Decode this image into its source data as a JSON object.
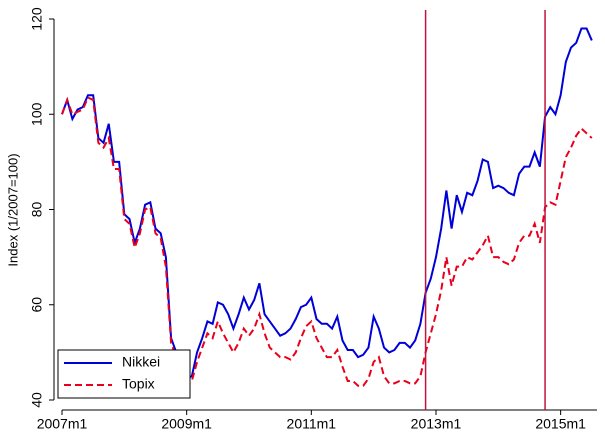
{
  "chart_data": {
    "type": "line",
    "ylabel": "Index (1/2007=100)",
    "x": [
      564,
      565,
      566,
      567,
      568,
      569,
      570,
      571,
      572,
      573,
      574,
      575,
      576,
      577,
      578,
      579,
      580,
      581,
      582,
      583,
      584,
      585,
      586,
      587,
      588,
      589,
      590,
      591,
      592,
      593,
      594,
      595,
      596,
      597,
      598,
      599,
      600,
      601,
      602,
      603,
      604,
      605,
      606,
      607,
      608,
      609,
      610,
      611,
      612,
      613,
      614,
      615,
      616,
      617,
      618,
      619,
      620,
      621,
      622,
      623,
      624,
      625,
      626,
      627,
      628,
      629,
      630,
      631,
      632,
      633,
      634,
      635,
      636,
      637,
      638,
      639,
      640,
      641,
      642,
      643,
      644,
      645,
      646,
      647,
      648,
      649,
      650,
      651,
      652,
      653,
      654,
      655,
      656,
      657,
      658,
      659,
      660,
      661,
      662,
      663,
      664,
      665,
      666
    ],
    "series": [
      {
        "name": "Nikkei",
        "color": "#0000d8",
        "dash": false,
        "values": [
          100,
          103,
          99,
          101,
          101.5,
          104,
          104,
          95,
          94,
          98,
          90,
          90,
          79,
          78,
          73,
          76,
          81,
          81.5,
          76,
          75,
          70,
          53,
          50,
          46,
          44.5,
          45,
          50,
          53,
          56.5,
          56,
          60.5,
          60,
          58,
          55,
          58,
          61.5,
          59,
          61,
          64.5,
          58,
          56.5,
          55,
          53.5,
          54,
          55,
          57,
          59.5,
          60,
          61.5,
          57,
          56,
          56,
          55,
          57.5,
          52.5,
          50.5,
          50.5,
          49,
          49.5,
          51,
          57.5,
          55,
          51,
          50,
          50.5,
          52,
          52,
          51,
          52.5,
          56,
          62.5,
          65.5,
          70,
          76,
          84,
          76,
          83,
          79.5,
          83.5,
          83,
          86,
          90.5,
          90,
          84.5,
          85,
          84.5,
          83.5,
          83,
          87.5,
          89,
          89,
          92,
          89,
          99.5,
          101.5,
          100,
          104,
          111,
          114,
          115,
          118,
          118,
          115.5
        ]
      },
      {
        "name": "Topix",
        "color": "#e8001c",
        "dash": true,
        "values": [
          100,
          103,
          100,
          100.5,
          101,
          103.5,
          103,
          94,
          93,
          95,
          88.5,
          88.5,
          78,
          77,
          72,
          75,
          80,
          80.5,
          75,
          74,
          68,
          52,
          49,
          45,
          44,
          44,
          48,
          51,
          54,
          53,
          56.5,
          54,
          52,
          50,
          52,
          55,
          53.5,
          55,
          58,
          54,
          51,
          50,
          49,
          49,
          48.5,
          50,
          53,
          55.5,
          56.5,
          53,
          51,
          49,
          49,
          50.5,
          47,
          44,
          44,
          43,
          43,
          44.5,
          48,
          49,
          45,
          43.5,
          43.5,
          44,
          44,
          43.5,
          43.5,
          45,
          50,
          54,
          58,
          63,
          70,
          64,
          68,
          68,
          70,
          69.5,
          71,
          72.5,
          74.5,
          70,
          70,
          69,
          68.5,
          69.5,
          73,
          74.5,
          74.5,
          77,
          73,
          80.5,
          81.5,
          81,
          86,
          91,
          93,
          95.5,
          97,
          96,
          95
        ]
      }
    ],
    "xlim": [
      564,
      667
    ],
    "xticks": [
      {
        "value": 564,
        "label": "2007m1"
      },
      {
        "value": 588,
        "label": "2009m1"
      },
      {
        "value": 612,
        "label": "2011m1"
      },
      {
        "value": 636,
        "label": "2013m1"
      },
      {
        "value": 660,
        "label": "2015m1"
      }
    ],
    "ylim": [
      40,
      120
    ],
    "yticks": [
      40,
      60,
      80,
      100,
      120
    ],
    "xlines": [
      634,
      657
    ],
    "xline_color": "#c0143c",
    "legend": "bottom-left"
  }
}
